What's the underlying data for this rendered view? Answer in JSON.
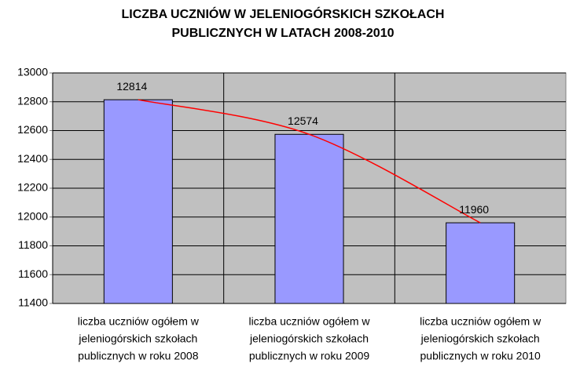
{
  "chart_data": {
    "type": "bar",
    "title": [
      "LICZBA UCZNIÓW W JELENIOGÓRSKICH SZKOŁACH",
      "PUBLICZNYCH W LATACH 2008-2010"
    ],
    "categories": [
      [
        "liczba uczniów ogółem w",
        "jeleniogórskich szkołach",
        "publicznych w roku 2008"
      ],
      [
        "liczba uczniów ogółem w",
        "jeleniogórskich szkołach",
        "publicznych w roku 2009"
      ],
      [
        "liczba uczniów ogółem w",
        "jeleniogórskich szkołach",
        "publicznych w roku 2010"
      ]
    ],
    "values": [
      12814,
      12574,
      11960
    ],
    "color": "#9999ff",
    "line_color": "#ff0000",
    "smooth_line": true,
    "data_labels": true,
    "ylim": [
      11400,
      13000
    ],
    "yticks": [
      11400,
      11600,
      11800,
      12000,
      12200,
      12400,
      12600,
      12800,
      13000
    ],
    "grid": true,
    "x_grid": true
  }
}
